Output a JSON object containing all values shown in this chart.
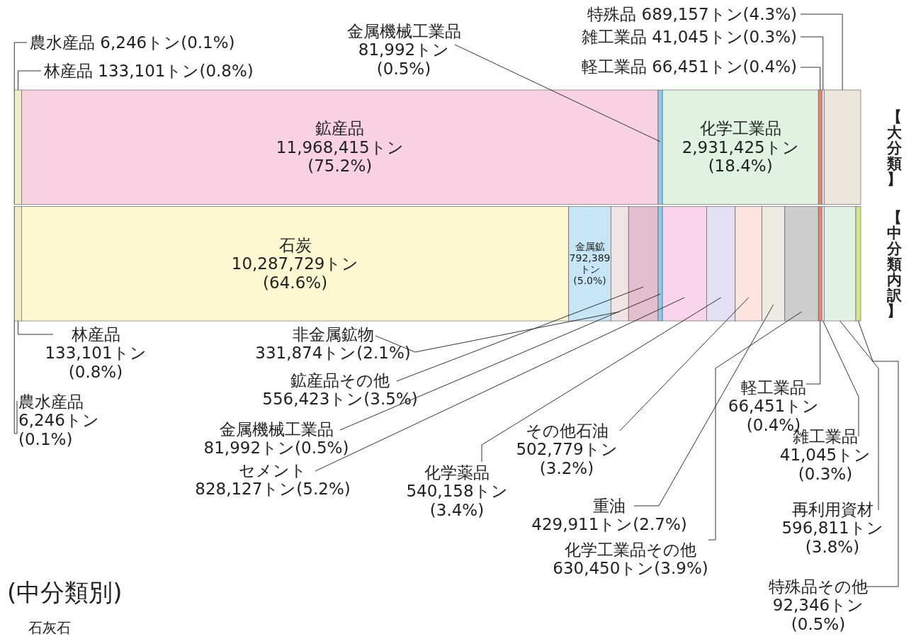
{
  "chart_data": {
    "type": "bar",
    "orientation": "horizontal",
    "stacked": true,
    "categories": [
      "【大分類】",
      "【中分類内訳】"
    ],
    "series": [
      {
        "name": "農水産品",
        "color": "#e6dea0",
        "values": [
          6246,
          6246
        ],
        "value_labels": [
          "6,246トン(0.1%)",
          "6,246トン(0.1%)"
        ]
      },
      {
        "name": "林産品",
        "color": "#f2edc4",
        "values": [
          133101,
          133101
        ],
        "value_labels": [
          "133,101トン(0.8%)",
          "133,101トン(0.8%)"
        ]
      },
      {
        "name": "鉱産品",
        "color": "#f9d2e2",
        "values": [
          11968415,
          null
        ],
        "value_labels": [
          "11,968,415トン(75.2%)",
          null
        ]
      },
      {
        "name": "石炭",
        "color": "#fdf8d2",
        "values": [
          null,
          10287729
        ],
        "value_labels": [
          null,
          "10,287,729トン(64.6%)"
        ]
      },
      {
        "name": "金属鉱",
        "color": "#c6e6f6",
        "values": [
          null,
          792389
        ],
        "value_labels": [
          null,
          "792,389トン(5.0%)"
        ]
      },
      {
        "name": "非金属鉱物",
        "color": "#f0e4e4",
        "values": [
          null,
          331874
        ],
        "value_labels": [
          null,
          "331,874トン(2.1%)"
        ]
      },
      {
        "name": "鉱産品その他",
        "color": "#e2bece",
        "values": [
          null,
          556423
        ],
        "value_labels": [
          null,
          "556,423トン(3.5%)"
        ]
      },
      {
        "name": "金属機械工業品",
        "color": "#8ccbee",
        "values": [
          81992,
          81992
        ],
        "value_labels": [
          "81,992トン(0.5%)",
          "81,992トン(0.5%)"
        ]
      },
      {
        "name": "化学工業品",
        "color": "#e0f2e2",
        "values": [
          2931425,
          null
        ],
        "value_labels": [
          "2,931,425トン(18.4%)",
          null
        ]
      },
      {
        "name": "セメント",
        "color": "#f9d4ea",
        "values": [
          null,
          828127
        ],
        "value_labels": [
          null,
          "828,127トン(5.2%)"
        ]
      },
      {
        "name": "化学薬品",
        "color": "#e2e0f2",
        "values": [
          null,
          540158
        ],
        "value_labels": [
          null,
          "540,158トン(3.4%)"
        ]
      },
      {
        "name": "その他石油",
        "color": "#fde4dc",
        "values": [
          null,
          502779
        ],
        "value_labels": [
          null,
          "502,779トン(3.2%)"
        ]
      },
      {
        "name": "重油",
        "color": "#eeebe4",
        "values": [
          null,
          429911
        ],
        "value_labels": [
          null,
          "429,911トン(2.7%)"
        ]
      },
      {
        "name": "化学工業品その他",
        "color": "#cdcdcd",
        "values": [
          null,
          630450
        ],
        "value_labels": [
          null,
          "630,450トン(3.9%)"
        ]
      },
      {
        "name": "軽工業品",
        "color": "#e8866e",
        "values": [
          66451,
          66451
        ],
        "value_labels": [
          "66,451トン(0.4%)",
          "66,451トン(0.4%)"
        ]
      },
      {
        "name": "雑工業品",
        "color": "#f0e6f2",
        "values": [
          41045,
          41045
        ],
        "value_labels": [
          "41,045トン(0.3%)",
          "41,045トン(0.3%)"
        ]
      },
      {
        "name": "特殊品",
        "color": "#ece6dc",
        "values": [
          689157,
          null
        ],
        "value_labels": [
          "689,157トン(4.3%)",
          null
        ]
      },
      {
        "name": "再利用資材",
        "color": "#e0f2e4",
        "values": [
          null,
          596811
        ],
        "value_labels": [
          null,
          "596,811トン(3.8%)"
        ]
      },
      {
        "name": "特殊品その他",
        "color": "#d4e88a",
        "values": [
          null,
          92346
        ],
        "value_labels": [
          null,
          "92,346トン(0.5%)"
        ]
      }
    ],
    "annotations": [
      "(中分類別)",
      "石灰石"
    ]
  }
}
